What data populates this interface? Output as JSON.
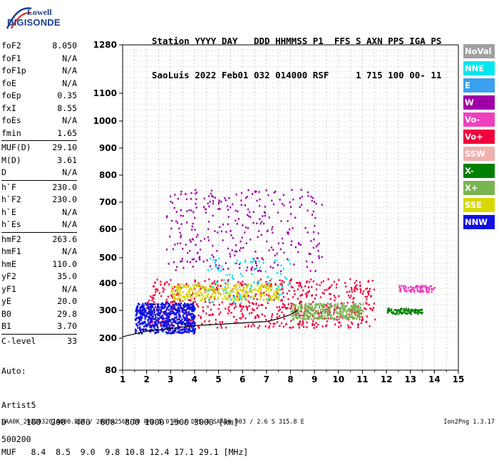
{
  "logo": {
    "brand_top": "Lowell",
    "brand_bottom": "DIGISONDE"
  },
  "header": {
    "line1": "Station YYYY DAY   DDD HHMMSS P1  FFS S AXN PPS IGA PS",
    "line2": "SaoLuis 2022 Feb01 032 014000 RSF     1 715 100 00- 11"
  },
  "parameters": [
    {
      "name": "foF2",
      "value": "8.050"
    },
    {
      "name": "foF1",
      "value": "N/A"
    },
    {
      "name": "foF1p",
      "value": "N/A"
    },
    {
      "name": "foE",
      "value": "N/A"
    },
    {
      "name": "foEp",
      "value": "0.35"
    },
    {
      "name": "fxI",
      "value": "8.55"
    },
    {
      "name": "foEs",
      "value": "N/A"
    },
    {
      "name": "fmin",
      "value": "1.65"
    },
    {
      "name": "MUF(D)",
      "value": "29.10",
      "sep": true
    },
    {
      "name": "M(D)",
      "value": "3.61"
    },
    {
      "name": "D",
      "value": "N/A"
    },
    {
      "name": "h`F",
      "value": "230.0",
      "sep": true
    },
    {
      "name": "h`F2",
      "value": "230.0"
    },
    {
      "name": "h`E",
      "value": "N/A"
    },
    {
      "name": "h`Es",
      "value": "N/A"
    },
    {
      "name": "hmF2",
      "value": "263.6",
      "sep": true
    },
    {
      "name": "hmF1",
      "value": "N/A"
    },
    {
      "name": "hmE",
      "value": "110.0"
    },
    {
      "name": "yF2",
      "value": "35.0"
    },
    {
      "name": "yF1",
      "value": "N/A"
    },
    {
      "name": "yE",
      "value": "20.0"
    },
    {
      "name": "B0",
      "value": "29.8"
    },
    {
      "name": "B1",
      "value": "3.70"
    },
    {
      "name": "C-level",
      "value": "33",
      "sep": true
    }
  ],
  "autoscale": {
    "line1": "Auto:",
    "line2": "Artist5",
    "line3": "500200"
  },
  "legend": [
    {
      "label": "NoVal",
      "color": "#a0a0a0"
    },
    {
      "label": "NNE",
      "color": "#00e6f0"
    },
    {
      "label": "E",
      "color": "#3aa0f0"
    },
    {
      "label": "W",
      "color": "#a000a8"
    },
    {
      "label": "Vo-",
      "color": "#f040c0"
    },
    {
      "label": "Vo+",
      "color": "#f0003c"
    },
    {
      "label": "SSW",
      "color": "#f0b0b0"
    },
    {
      "label": "X-",
      "color": "#008000"
    },
    {
      "label": "X+",
      "color": "#78b450"
    },
    {
      "label": "SSE",
      "color": "#d8d800"
    },
    {
      "label": "NNW",
      "color": "#1010e0"
    }
  ],
  "mufline": {
    "line1": "D    100  200  400  600  800 1000 1500 3000 [km]",
    "line2": "MUF   8.4  8.5  9.0  9.8 10.8 12.4 17.1 29.1 [MHz]"
  },
  "footer": {
    "left": "SAA0K_2022032014000.RSF / 280fx256h 50 kHz 5.0 km / DPS-4 SAA0K 903 / 2.6 S 315.8 E",
    "right": "Ion2Png 1.3.17"
  },
  "chart_data": {
    "type": "scatter",
    "title": "",
    "xlabel": "",
    "ylabel": "",
    "x_ticks": [
      1,
      2,
      3,
      4,
      5,
      6,
      7,
      8,
      9,
      10,
      11,
      12,
      13,
      14,
      15
    ],
    "y_ticks": [
      80,
      200,
      300,
      400,
      500,
      600,
      700,
      800,
      900,
      1000,
      1100,
      1280
    ],
    "xlim": [
      1,
      15
    ],
    "ylim": [
      80,
      1280
    ],
    "y_scale": "virtual height (km), nonlinear",
    "grid": true,
    "trace_profile": {
      "x": [
        1.0,
        1.5,
        2.0,
        3.0,
        4.0,
        5.0,
        6.0,
        7.0,
        7.5,
        8.0,
        8.3
      ],
      "y": [
        205,
        215,
        225,
        235,
        245,
        250,
        255,
        260,
        270,
        285,
        300
      ]
    },
    "echo_regions": [
      {
        "mode": "Vo+",
        "x_range": [
          2.0,
          11.5
        ],
        "y_range": [
          240,
          420
        ],
        "density": "high"
      },
      {
        "mode": "NNW",
        "x_range": [
          1.5,
          4.0
        ],
        "y_range": [
          220,
          330
        ],
        "density": "high"
      },
      {
        "mode": "W",
        "x_range": [
          2.8,
          9.3
        ],
        "y_range": [
          450,
          750
        ],
        "density": "medium"
      },
      {
        "mode": "SSE",
        "x_range": [
          3.0,
          7.5
        ],
        "y_range": [
          340,
          400
        ],
        "density": "medium"
      },
      {
        "mode": "X+",
        "x_range": [
          8.0,
          11.0
        ],
        "y_range": [
          270,
          330
        ],
        "density": "medium"
      },
      {
        "mode": "NNE",
        "x_range": [
          4.5,
          8.0
        ],
        "y_range": [
          330,
          500
        ],
        "density": "low"
      },
      {
        "mode": "X-",
        "x_range": [
          12.0,
          13.5
        ],
        "y_range": [
          290,
          310
        ],
        "density": "low"
      },
      {
        "mode": "Vo-",
        "x_range": [
          12.5,
          14.0
        ],
        "y_range": [
          370,
          395
        ],
        "density": "low"
      }
    ]
  }
}
